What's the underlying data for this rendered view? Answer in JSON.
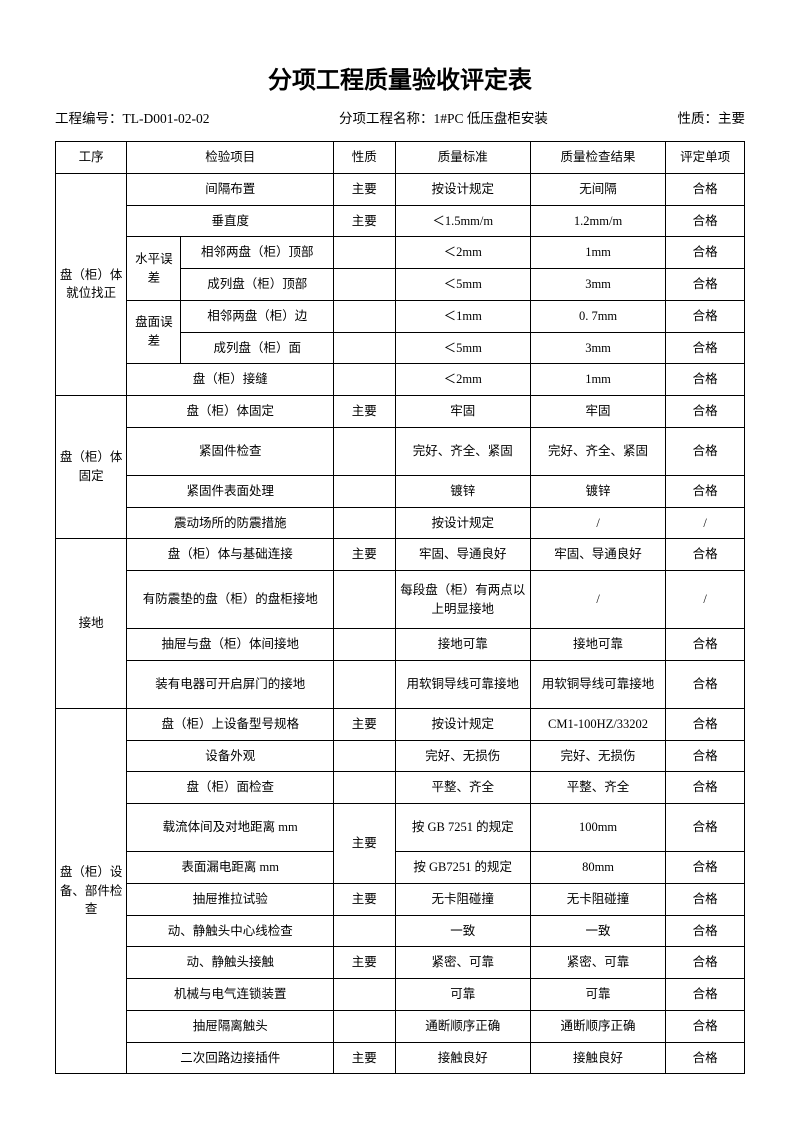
{
  "title": "分项工程质量验收评定表",
  "header": {
    "project_no_label": "工程编号：",
    "project_no": "TL-D001-02-02",
    "sub_name_label": "分项工程名称：",
    "sub_name": "1#PC 低压盘柜安装",
    "nature_label": "性质：",
    "nature": "主要"
  },
  "columns": {
    "process": "工序",
    "item": "检验项目",
    "nature": "性质",
    "standard": "质量标准",
    "result": "质量检查结果",
    "eval": "评定单项"
  },
  "groups": {
    "g1": {
      "name": "盘（柜）体就位找正",
      "sub_horiz": "水平误差",
      "sub_surf": "盘面误差",
      "rows": [
        {
          "item": "间隔布置",
          "nature": "主要",
          "std": "按设计规定",
          "result": "无间隔",
          "eval": "合格"
        },
        {
          "item": "垂直度",
          "nature": "主要",
          "std": "＜1.5mm/m",
          "result": "1.2mm/m",
          "eval": "合格"
        },
        {
          "item": "相邻两盘（柜）顶部",
          "nature": "",
          "std": "＜2mm",
          "result": "1mm",
          "eval": "合格"
        },
        {
          "item": "成列盘（柜）顶部",
          "nature": "",
          "std": "＜5mm",
          "result": "3mm",
          "eval": "合格"
        },
        {
          "item": "相邻两盘（柜）边",
          "nature": "",
          "std": "＜1mm",
          "result": "0. 7mm",
          "eval": "合格"
        },
        {
          "item": "成列盘（柜）面",
          "nature": "",
          "std": "＜5mm",
          "result": "3mm",
          "eval": "合格"
        },
        {
          "item": "盘（柜）接缝",
          "nature": "",
          "std": "＜2mm",
          "result": "1mm",
          "eval": "合格"
        }
      ]
    },
    "g2": {
      "name": "盘（柜）体固定",
      "rows": [
        {
          "item": "盘（柜）体固定",
          "nature": "主要",
          "std": "牢固",
          "result": "牢固",
          "eval": "合格"
        },
        {
          "item": "紧固件检查",
          "nature": "",
          "std": "完好、齐全、紧固",
          "result": "完好、齐全、紧固",
          "eval": "合格"
        },
        {
          "item": "紧固件表面处理",
          "nature": "",
          "std": "镀锌",
          "result": "镀锌",
          "eval": "合格"
        },
        {
          "item": "震动场所的防震措施",
          "nature": "",
          "std": "按设计规定",
          "result": "/",
          "eval": "/"
        }
      ]
    },
    "g3": {
      "name": "接地",
      "rows": [
        {
          "item": "盘（柜）体与基础连接",
          "nature": "主要",
          "std": "牢固、导通良好",
          "result": "牢固、导通良好",
          "eval": "合格"
        },
        {
          "item": "有防震垫的盘（柜）的盘柜接地",
          "nature": "",
          "std": "每段盘（柜）有两点以上明显接地",
          "result": "/",
          "eval": "/"
        },
        {
          "item": "抽屉与盘（柜）体间接地",
          "nature": "",
          "std": "接地可靠",
          "result": "接地可靠",
          "eval": "合格"
        },
        {
          "item": "装有电器可开启屏门的接地",
          "nature": "",
          "std": "用软铜导线可靠接地",
          "result": "用软铜导线可靠接地",
          "eval": "合格"
        }
      ]
    },
    "g4": {
      "name": "盘（柜）设备、部件检查",
      "rows": [
        {
          "item": "盘（柜）上设备型号规格",
          "nature": "主要",
          "std": "按设计规定",
          "result": "CM1-100HZ/33202",
          "eval": "合格"
        },
        {
          "item": "设备外观",
          "nature": "",
          "std": "完好、无损伤",
          "result": "完好、无损伤",
          "eval": "合格"
        },
        {
          "item": "盘（柜）面检查",
          "nature": "",
          "std": "平整、齐全",
          "result": "平整、齐全",
          "eval": "合格"
        },
        {
          "item": "载流体间及对地距离        mm",
          "nature": "主要",
          "std": "按 GB 7251 的规定",
          "result": "100mm",
          "eval": "合格"
        },
        {
          "item": "表面漏电距离              mm",
          "nature": "",
          "std": "按 GB7251 的规定",
          "result": "80mm",
          "eval": "合格"
        },
        {
          "item": "抽屉推拉试验",
          "nature": "主要",
          "std": "无卡阻碰撞",
          "result": "无卡阻碰撞",
          "eval": "合格"
        },
        {
          "item": "动、静触头中心线检查",
          "nature": "",
          "std": "一致",
          "result": "一致",
          "eval": "合格"
        },
        {
          "item": "动、静触头接触",
          "nature": "主要",
          "std": "紧密、可靠",
          "result": "紧密、可靠",
          "eval": "合格"
        },
        {
          "item": "机械与电气连锁装置",
          "nature": "",
          "std": "可靠",
          "result": "可靠",
          "eval": "合格"
        },
        {
          "item": "抽屉隔离触头",
          "nature": "",
          "std": "通断顺序正确",
          "result": "通断顺序正确",
          "eval": "合格"
        },
        {
          "item": "二次回路边接插件",
          "nature": "主要",
          "std": "接触良好",
          "result": "接触良好",
          "eval": "合格"
        }
      ]
    }
  }
}
